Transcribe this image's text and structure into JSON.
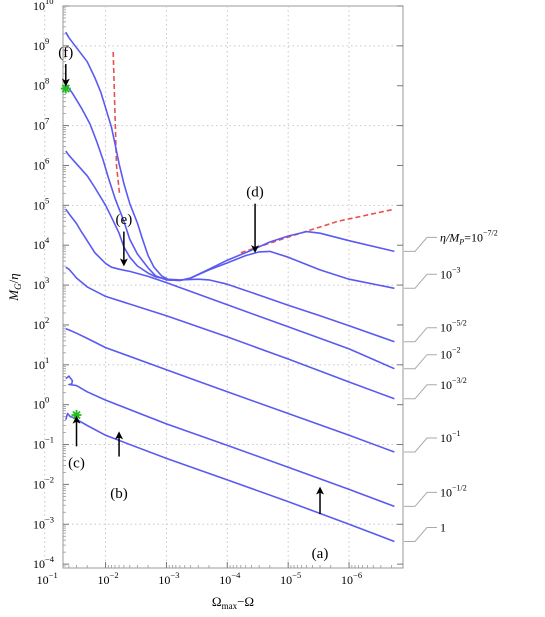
{
  "chart_data": {
    "type": "line",
    "x_axis": {
      "label": "Ω<tspan font-size='9' dy='3'>max</tspan><tspan dy='-3'>−Ω</tspan>",
      "label_text": "Ωmax−Ω",
      "scale": "log",
      "reversed": true,
      "range": [
        1.3e-07,
        0.05
      ],
      "ticks": [
        {
          "value": 0.1,
          "mant": "10",
          "exp": "−1"
        },
        {
          "value": 0.01,
          "mant": "10",
          "exp": "−2"
        },
        {
          "value": 0.001,
          "mant": "10",
          "exp": "−3"
        },
        {
          "value": 0.0001,
          "mant": "10",
          "exp": "−4"
        },
        {
          "value": 1e-05,
          "mant": "10",
          "exp": "−5"
        },
        {
          "value": 1e-06,
          "mant": "10",
          "exp": "−6"
        }
      ]
    },
    "y_axis": {
      "label_text": "MG/η",
      "scale": "log",
      "range": [
        8e-05,
        10000000000
      ],
      "ticks": [
        {
          "value": 10000000000.0,
          "mant": "10",
          "exp": "10"
        },
        {
          "value": 1000000000.0,
          "mant": "10",
          "exp": "9"
        },
        {
          "value": 100000000.0,
          "mant": "10",
          "exp": "8"
        },
        {
          "value": 10000000.0,
          "mant": "10",
          "exp": "7"
        },
        {
          "value": 1000000.0,
          "mant": "10",
          "exp": "6"
        },
        {
          "value": 100000.0,
          "mant": "10",
          "exp": "5"
        },
        {
          "value": 10000.0,
          "mant": "10",
          "exp": "4"
        },
        {
          "value": 1000.0,
          "mant": "10",
          "exp": "3"
        },
        {
          "value": 100.0,
          "mant": "10",
          "exp": "2"
        },
        {
          "value": 10.0,
          "mant": "10",
          "exp": "1"
        },
        {
          "value": 1,
          "mant": "10",
          "exp": "0"
        },
        {
          "value": 0.1,
          "mant": "10",
          "exp": "−1"
        },
        {
          "value": 0.01,
          "mant": "10",
          "exp": "−2"
        },
        {
          "value": 0.001,
          "mant": "10",
          "exp": "−3"
        },
        {
          "value": 0.0001,
          "mant": "10",
          "exp": "−4"
        }
      ]
    },
    "grid": true,
    "series": [
      {
        "name": "η/MP=10^−7/2",
        "label": {
          "mant": "η/M",
          "sub": "P",
          "tail": "=10",
          "exp": "−7/2"
        },
        "color": "#5a5af0",
        "points": [
          [
            0.045,
            2200000000.0
          ],
          [
            0.04,
            1600000000.0
          ],
          [
            0.03,
            900000000.0
          ],
          [
            0.02,
            400000000.0
          ],
          [
            0.015,
            160000000.0
          ],
          [
            0.012,
            70000000.0
          ],
          [
            0.01,
            28000000.0
          ],
          [
            0.008,
            9000000.0
          ],
          [
            0.007,
            3500000.0
          ],
          [
            0.006,
            1100000.0
          ],
          [
            0.005,
            350000.0
          ],
          [
            0.004,
            110000.0
          ],
          [
            0.003,
            36000.0
          ],
          [
            0.0025,
            15000.0
          ],
          [
            0.002,
            5500
          ],
          [
            0.0016,
            2800
          ],
          [
            0.0012,
            1700
          ],
          [
            0.0009,
            1350
          ],
          [
            0.0006,
            1300
          ],
          [
            0.0004,
            1500
          ],
          [
            0.0002,
            2500
          ],
          [
            0.0001,
            4200
          ],
          [
            4e-05,
            7500
          ],
          [
            2e-05,
            12000
          ],
          [
            1e-05,
            17000
          ],
          [
            5e-06,
            22000
          ],
          [
            3e-06,
            20000
          ],
          [
            1e-06,
            13000
          ],
          [
            1.8e-07,
            7000
          ]
        ]
      },
      {
        "name": "10^−3",
        "label": {
          "mant": "10",
          "exp": "−3"
        },
        "color": "#5a5af0",
        "points": [
          [
            0.045,
            110000000.0
          ],
          [
            0.035,
            65000000.0
          ],
          [
            0.025,
            28000000.0
          ],
          [
            0.018,
            11000000.0
          ],
          [
            0.014,
            4000000.0
          ],
          [
            0.011,
            1400000.0
          ],
          [
            0.009,
            500000.0
          ],
          [
            0.007,
            150000.0
          ],
          [
            0.005,
            40000.0
          ],
          [
            0.004,
            14000.0
          ],
          [
            0.003,
            6000
          ],
          [
            0.002,
            2700
          ],
          [
            0.0015,
            1700
          ],
          [
            0.001,
            1350
          ],
          [
            0.0006,
            1300
          ],
          [
            0.0004,
            1500
          ],
          [
            0.0002,
            2400
          ],
          [
            0.0001,
            3600
          ],
          [
            5e-05,
            5500
          ],
          [
            3e-05,
            6800
          ],
          [
            2e-05,
            7000
          ],
          [
            1e-05,
            5000
          ],
          [
            3e-06,
            2400
          ],
          [
            1e-06,
            1400
          ],
          [
            1.8e-07,
            830
          ]
        ]
      },
      {
        "name": "10^−5/2",
        "label": {
          "mant": "10",
          "exp": "−5/2"
        },
        "color": "#5a5af0",
        "points": [
          [
            0.045,
            2300000.0
          ],
          [
            0.04,
            1800000.0
          ],
          [
            0.03,
            1100000.0
          ],
          [
            0.02,
            550000.0
          ],
          [
            0.015,
            280000.0
          ],
          [
            0.01,
            100000.0
          ],
          [
            0.008,
            50000.0
          ],
          [
            0.006,
            20000.0
          ],
          [
            0.005,
            9000
          ],
          [
            0.004,
            5000
          ],
          [
            0.003,
            3000
          ],
          [
            0.002,
            2000
          ],
          [
            0.0015,
            1600
          ],
          [
            0.001,
            1400
          ],
          [
            0.0006,
            1350
          ],
          [
            0.0003,
            1400
          ],
          [
            0.0002,
            1350
          ],
          [
            0.0001,
            1050
          ],
          [
            3e-05,
            560
          ],
          [
            1e-05,
            310
          ],
          [
            3e-06,
            170
          ],
          [
            1e-06,
            95
          ],
          [
            1.8e-07,
            38
          ]
        ]
      },
      {
        "name": "10^−2",
        "label": {
          "mant": "10",
          "exp": "−2"
        },
        "color": "#5a5af0",
        "points": [
          [
            0.045,
            80000.0
          ],
          [
            0.04,
            62000.0
          ],
          [
            0.03,
            35000.0
          ],
          [
            0.025,
            22000.0
          ],
          [
            0.02,
            13000.0
          ],
          [
            0.015,
            6500
          ],
          [
            0.01,
            3500
          ],
          [
            0.008,
            2800
          ],
          [
            0.006,
            2500
          ],
          [
            0.004,
            2200
          ],
          [
            0.002,
            1650
          ],
          [
            0.001,
            1150
          ],
          [
            0.0001,
            320
          ],
          [
            1e-05,
            90
          ],
          [
            1e-06,
            25
          ],
          [
            1.8e-07,
            8
          ]
        ]
      },
      {
        "name": "10^−3/2",
        "label": {
          "mant": "10",
          "exp": "−3/2"
        },
        "color": "#5a5af0",
        "points": [
          [
            0.045,
            2800
          ],
          [
            0.04,
            2500
          ],
          [
            0.035,
            2000
          ],
          [
            0.03,
            1500
          ],
          [
            0.02,
            900
          ],
          [
            0.01,
            520
          ],
          [
            0.001,
            170
          ],
          [
            0.0001,
            50
          ],
          [
            1e-05,
            14
          ],
          [
            1e-06,
            3.7
          ],
          [
            1.8e-07,
            1.4
          ]
        ]
      },
      {
        "name": "10^−1",
        "label": {
          "mant": "10",
          "exp": "−1"
        },
        "color": "#5a5af0",
        "points": [
          [
            0.045,
            80
          ],
          [
            0.04,
            75
          ],
          [
            0.03,
            62
          ],
          [
            0.02,
            46
          ],
          [
            0.01,
            27
          ],
          [
            0.001,
            7.5
          ],
          [
            0.0001,
            2.1
          ],
          [
            1e-05,
            0.6
          ],
          [
            1e-06,
            0.17
          ],
          [
            1.8e-07,
            0.065
          ]
        ]
      },
      {
        "name": "10^−1/2",
        "label": {
          "mant": "10",
          "exp": "−1/2"
        },
        "color": "#5a5af0",
        "points": [
          [
            0.045,
            4.5
          ],
          [
            0.04,
            5.2
          ],
          [
            0.035,
            4
          ],
          [
            0.036,
            3.3
          ],
          [
            0.04,
            3.2
          ],
          [
            0.03,
            3
          ],
          [
            0.02,
            2.1
          ],
          [
            0.01,
            1.3
          ],
          [
            0.001,
            0.33
          ],
          [
            0.0001,
            0.095
          ],
          [
            1e-05,
            0.027
          ],
          [
            1e-06,
            0.0075
          ],
          [
            1.8e-07,
            0.0028
          ]
        ]
      },
      {
        "name": "1",
        "label": {
          "mant": "1",
          "exp": ""
        },
        "color": "#5a5af0",
        "points": [
          [
            0.045,
            0.42
          ],
          [
            0.042,
            0.6
          ],
          [
            0.038,
            0.5
          ],
          [
            0.034,
            0.48
          ],
          [
            0.03,
            0.43
          ],
          [
            0.02,
            0.3
          ],
          [
            0.01,
            0.17
          ],
          [
            0.001,
            0.045
          ],
          [
            0.0001,
            0.013
          ],
          [
            1e-05,
            0.0037
          ],
          [
            1e-06,
            0.001
          ],
          [
            1.8e-07,
            0.00037
          ]
        ]
      }
    ],
    "reference_lines": [
      {
        "name": "dashed-steep",
        "color": "#e85050",
        "points": [
          [
            0.0075,
            700000000.0
          ],
          [
            0.0066,
            1000000.0
          ],
          [
            0.0059,
            200000.0
          ]
        ]
      },
      {
        "name": "dashed-shallow",
        "color": "#e85050",
        "points": [
          [
            6e-05,
            6500
          ],
          [
            1e-05,
            16000.0
          ],
          [
            1.5e-06,
            40000.0
          ],
          [
            1.8e-07,
            80000.0
          ]
        ]
      }
    ],
    "markers": [
      {
        "name": "star-f",
        "x": 0.045,
        "y": 85000000.0,
        "color": "#22bb22"
      },
      {
        "name": "star-c",
        "x": 0.03,
        "y": 0.55,
        "color": "#22bb22"
      }
    ],
    "annotations": [
      {
        "text": "(a)",
        "label_x": 3e-06,
        "label_y": 0.00019,
        "arrow_from": [
          3e-06,
          0.0018
        ],
        "arrow_to": [
          3e-06,
          0.007
        ]
      },
      {
        "text": "(b)",
        "label_x": 0.006,
        "label_y": 0.006,
        "arrow_from": [
          0.006,
          0.05
        ],
        "arrow_to": [
          0.006,
          0.17
        ]
      },
      {
        "text": "(c)",
        "label_x": 0.03,
        "label_y": 0.035,
        "arrow_from": [
          0.03,
          0.09
        ],
        "arrow_to": [
          0.03,
          0.42
        ]
      },
      {
        "text": "(d)",
        "label_x": 3.5e-05,
        "label_y": 220000.0,
        "arrow_from": [
          3.5e-05,
          110000.0
        ],
        "arrow_to": [
          3.5e-05,
          8000
        ]
      },
      {
        "text": "(e)",
        "label_x": 0.005,
        "label_y": 46000.0,
        "arrow_from": [
          0.005,
          22000.0
        ],
        "arrow_to": [
          0.005,
          3700
        ]
      },
      {
        "text": "(f)",
        "label_x": 0.045,
        "label_y": 700000000.0,
        "arrow_from": [
          0.045,
          350000000.0
        ],
        "arrow_to": [
          0.045,
          120000000.0
        ]
      }
    ]
  }
}
